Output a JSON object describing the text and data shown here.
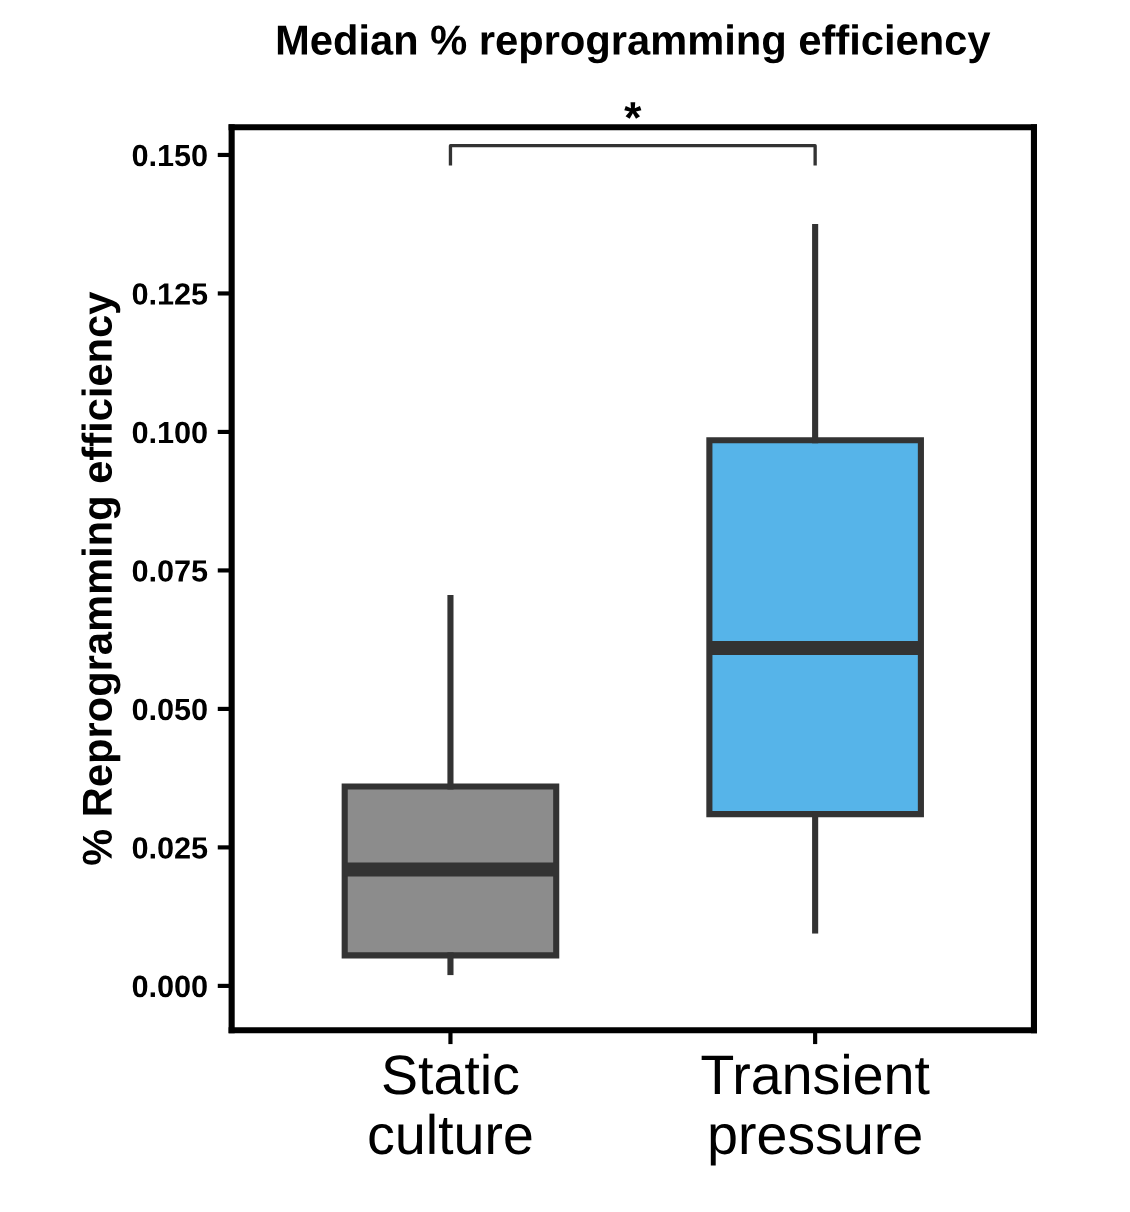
{
  "chart_data": {
    "type": "box",
    "title": "Median % reprogramming efficiency",
    "ylabel": "% Reprogramming efficiency",
    "categories": [
      "Static\nculture",
      "Transient\npressure"
    ],
    "boxes": [
      {
        "low": 0.0025,
        "q1": 0.0055,
        "median": 0.021,
        "q3": 0.036,
        "high": 0.07
      },
      {
        "low": 0.01,
        "q1": 0.031,
        "median": 0.061,
        "q3": 0.0985,
        "high": 0.137
      }
    ],
    "colors": [
      "#8c8c8c",
      "#56b4e9"
    ],
    "ylim": [
      -0.008,
      0.155
    ],
    "yticks": [
      {
        "value": 0,
        "label": "0.000"
      },
      {
        "value": 0.025,
        "label": "0.025"
      },
      {
        "value": 0.05,
        "label": "0.050"
      },
      {
        "value": 0.075,
        "label": "0.075"
      },
      {
        "value": 0.1,
        "label": "0.100"
      },
      {
        "value": 0.125,
        "label": "0.125"
      },
      {
        "value": 0.15,
        "label": "0.150"
      }
    ],
    "annotations": [
      "*"
    ],
    "grid": false,
    "legend": false
  }
}
